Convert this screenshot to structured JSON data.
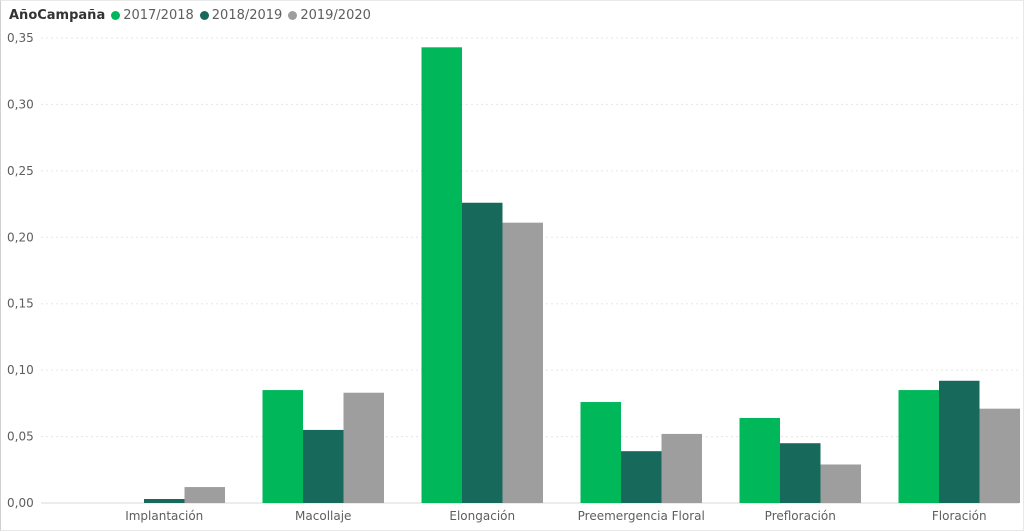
{
  "chart_data": {
    "type": "bar",
    "legend_title": "AñoCampaña",
    "legend_position": "top-left",
    "categories": [
      "Implantación",
      "Macollaje",
      "Elongación",
      "Preemergencia Floral",
      "Prefloración",
      "Floración"
    ],
    "series": [
      {
        "name": "2017/2018",
        "color": "#00b85a",
        "values": [
          0.0,
          0.085,
          0.343,
          0.076,
          0.064,
          0.085
        ]
      },
      {
        "name": "2018/2019",
        "color": "#17695b",
        "values": [
          0.003,
          0.055,
          0.226,
          0.039,
          0.045,
          0.092
        ]
      },
      {
        "name": "2019/2020",
        "color": "#9e9e9e",
        "values": [
          0.012,
          0.083,
          0.211,
          0.052,
          0.029,
          0.071
        ]
      }
    ],
    "ylim": [
      0,
      0.35
    ],
    "yticks": [
      "0,00",
      "0,05",
      "0,10",
      "0,15",
      "0,20",
      "0,25",
      "0,30",
      "0,35"
    ],
    "grid": true,
    "xlabel": "",
    "ylabel": ""
  }
}
